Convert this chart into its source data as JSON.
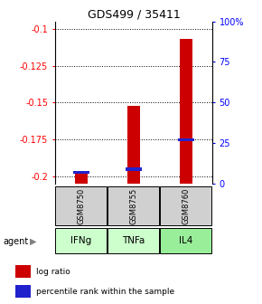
{
  "title": "GDS499 / 35411",
  "categories": [
    "IFNg",
    "TNFa",
    "IL4"
  ],
  "sample_ids": [
    "GSM8750",
    "GSM8755",
    "GSM8760"
  ],
  "log_ratios": [
    -0.197,
    -0.152,
    -0.107
  ],
  "percentile_ranks": [
    0.07,
    0.09,
    0.27
  ],
  "ylim_left": [
    -0.205,
    -0.095
  ],
  "ylim_right": [
    0,
    100
  ],
  "yticks_left": [
    -0.2,
    -0.175,
    -0.15,
    -0.125,
    -0.1
  ],
  "yticks_right": [
    0,
    25,
    50,
    75,
    100
  ],
  "bar_color_red": "#cc0000",
  "bar_color_blue": "#2222cc",
  "green_colors": [
    "#ccffcc",
    "#ccffcc",
    "#99ee99"
  ],
  "sample_bg": "#d0d0d0",
  "legend_red": "log ratio",
  "legend_blue": "percentile rank within the sample",
  "bar_width": 0.25
}
